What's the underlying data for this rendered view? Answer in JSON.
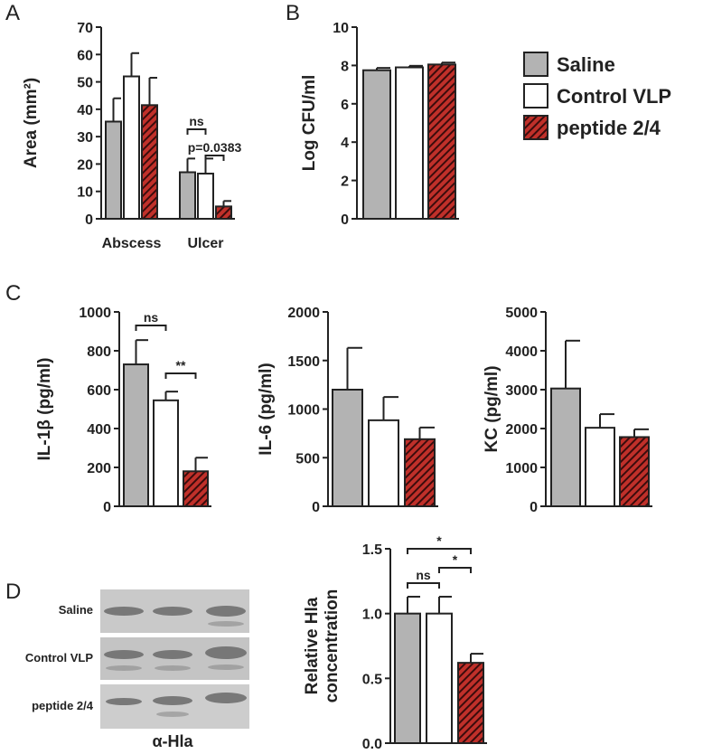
{
  "chart_data": [
    {
      "type": "bar",
      "panel": "A",
      "ylabel": [
        "Area (mm²)"
      ],
      "categories": [
        "Abscess",
        "Ulcer"
      ],
      "ylim": [
        0,
        70
      ],
      "yticks": [
        0,
        10,
        20,
        30,
        40,
        50,
        60,
        70
      ],
      "series": [
        {
          "color": "#b3b3b3",
          "values": [
            35.5,
            17
          ],
          "errors": [
            8.5,
            5
          ]
        },
        {
          "color": "#ffffff",
          "values": [
            52,
            16.5
          ],
          "errors": [
            8.5,
            5.5
          ]
        },
        {
          "color": "#c0302a",
          "pattern": "hatch",
          "values": [
            41.5,
            4.5
          ],
          "errors": [
            10,
            2
          ]
        }
      ],
      "annotations": [
        {
          "text": "ns",
          "between": [
            [
              1,
              0
            ],
            [
              1,
              1
            ]
          ]
        },
        {
          "text": "p=0.0383",
          "between": [
            [
              1,
              1
            ],
            [
              1,
              2
            ]
          ]
        }
      ]
    },
    {
      "type": "bar",
      "panel": "B",
      "ylabel": [
        "Log CFU/ml"
      ],
      "ylim": [
        0,
        10
      ],
      "yticks": [
        0,
        2,
        4,
        6,
        8,
        10
      ],
      "legend": "right",
      "series": [
        {
          "name": "Saline",
          "color": "#b3b3b3",
          "values": [
            7.75
          ],
          "errors": [
            0.12
          ]
        },
        {
          "name": "Control VLP",
          "color": "#ffffff",
          "values": [
            7.9
          ],
          "errors": [
            0.08
          ]
        },
        {
          "name": "peptide 2/4",
          "color": "#c0302a",
          "pattern": "hatch",
          "values": [
            8.05
          ],
          "errors": [
            0.1
          ]
        }
      ]
    },
    {
      "type": "bar",
      "panel": "C",
      "ylabel": [
        "IL-1β (pg/ml)"
      ],
      "ylim": [
        0,
        1000
      ],
      "yticks": [
        0,
        200,
        400,
        600,
        800,
        1000
      ],
      "series": [
        {
          "color": "#b3b3b3",
          "values": [
            730
          ],
          "errors": [
            125
          ]
        },
        {
          "color": "#ffffff",
          "values": [
            545
          ],
          "errors": [
            45
          ]
        },
        {
          "color": "#c0302a",
          "pattern": "hatch",
          "values": [
            180
          ],
          "errors": [
            70
          ]
        }
      ],
      "annotations": [
        {
          "text": "ns",
          "between": [
            [
              0,
              0
            ],
            [
              0,
              1
            ]
          ]
        },
        {
          "text": "**",
          "between": [
            [
              0,
              1
            ],
            [
              0,
              2
            ]
          ]
        }
      ]
    },
    {
      "type": "bar",
      "ylabel": [
        "IL-6 (pg/ml)"
      ],
      "ylim": [
        0,
        2000
      ],
      "yticks": [
        0,
        500,
        1000,
        1500,
        2000
      ],
      "series": [
        {
          "color": "#b3b3b3",
          "values": [
            1200
          ],
          "errors": [
            430
          ]
        },
        {
          "color": "#ffffff",
          "values": [
            885
          ],
          "errors": [
            240
          ]
        },
        {
          "color": "#c0302a",
          "pattern": "hatch",
          "values": [
            690
          ],
          "errors": [
            120
          ]
        }
      ]
    },
    {
      "type": "bar",
      "ylabel": [
        "KC (pg/ml)"
      ],
      "ylim": [
        0,
        5000
      ],
      "yticks": [
        0,
        1000,
        2000,
        3000,
        4000,
        5000
      ],
      "series": [
        {
          "color": "#b3b3b3",
          "values": [
            3030
          ],
          "errors": [
            1230
          ]
        },
        {
          "color": "#ffffff",
          "values": [
            2020
          ],
          "errors": [
            350
          ]
        },
        {
          "color": "#c0302a",
          "pattern": "hatch",
          "values": [
            1780
          ],
          "errors": [
            200
          ]
        }
      ]
    },
    {
      "type": "bar",
      "panel": "D",
      "ylabel": [
        "Relative Hla",
        "concentration"
      ],
      "ylim": [
        0,
        1.5
      ],
      "yticks": [
        {
          "value": 0,
          "label": "0.0"
        },
        {
          "value": 0.5,
          "label": "0.5"
        },
        {
          "value": 1,
          "label": "1.0"
        },
        {
          "value": 1.5,
          "label": "1.5"
        }
      ],
      "series": [
        {
          "color": "#b3b3b3",
          "values": [
            1.0
          ],
          "errors": [
            0.13
          ]
        },
        {
          "color": "#ffffff",
          "values": [
            1.0
          ],
          "errors": [
            0.13
          ]
        },
        {
          "color": "#c0302a",
          "pattern": "hatch",
          "values": [
            0.62
          ],
          "errors": [
            0.07
          ]
        }
      ],
      "annotations": [
        {
          "text": "*",
          "between": [
            [
              0,
              0
            ],
            [
              0,
              2
            ]
          ]
        },
        {
          "text": "ns",
          "between": [
            [
              0,
              0
            ],
            [
              0,
              1
            ]
          ]
        },
        {
          "text": "*",
          "between": [
            [
              0,
              1
            ],
            [
              0,
              2
            ]
          ]
        }
      ]
    }
  ],
  "blot": {
    "lane_labels": [
      "Saline",
      "Control VLP",
      "peptide 2/4"
    ],
    "caption": "α-Hla"
  }
}
